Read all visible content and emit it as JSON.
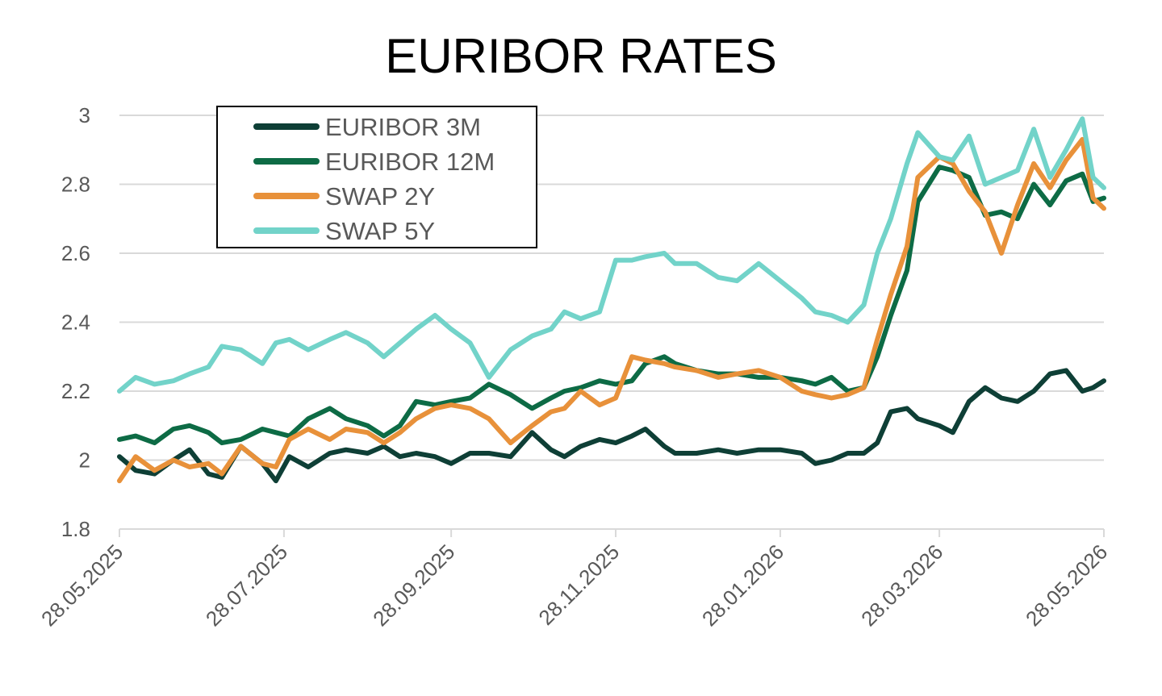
{
  "chart_data": {
    "type": "line",
    "title": "EURIBOR RATES",
    "xlabel": "",
    "ylabel": "",
    "ylim": [
      1.8,
      3.0
    ],
    "yticks": [
      "1.8",
      "2",
      "2.2",
      "2.4",
      "2.6",
      "2.8",
      "3"
    ],
    "xlim": [
      "2025-05-28",
      "2026-05-28"
    ],
    "xtick_labels": [
      "28.05.2025",
      "28.07.2025",
      "28.09.2025",
      "28.11.2025",
      "28.01.2026",
      "28.03.2026",
      "28.05.2026"
    ],
    "xtick_dates": [
      "2025-05-28",
      "2025-07-28",
      "2025-09-28",
      "2025-11-28",
      "2026-01-28",
      "2026-03-28",
      "2026-05-28"
    ],
    "grid": "horizontal",
    "legend_position": "top-left",
    "series": [
      {
        "name": "EURIBOR 3M",
        "color": "#0e3f36",
        "points": [
          [
            "2025-05-28",
            2.01
          ],
          [
            "2025-06-03",
            1.97
          ],
          [
            "2025-06-10",
            1.96
          ],
          [
            "2025-06-17",
            2.0
          ],
          [
            "2025-06-23",
            2.03
          ],
          [
            "2025-06-30",
            1.96
          ],
          [
            "2025-07-05",
            1.95
          ],
          [
            "2025-07-12",
            2.04
          ],
          [
            "2025-07-20",
            1.99
          ],
          [
            "2025-07-25",
            1.94
          ],
          [
            "2025-07-30",
            2.01
          ],
          [
            "2025-08-06",
            1.98
          ],
          [
            "2025-08-14",
            2.02
          ],
          [
            "2025-08-20",
            2.03
          ],
          [
            "2025-08-28",
            2.02
          ],
          [
            "2025-09-03",
            2.04
          ],
          [
            "2025-09-09",
            2.01
          ],
          [
            "2025-09-15",
            2.02
          ],
          [
            "2025-09-22",
            2.01
          ],
          [
            "2025-09-28",
            1.99
          ],
          [
            "2025-10-05",
            2.02
          ],
          [
            "2025-10-12",
            2.02
          ],
          [
            "2025-10-20",
            2.01
          ],
          [
            "2025-10-28",
            2.08
          ],
          [
            "2025-11-04",
            2.03
          ],
          [
            "2025-11-09",
            2.01
          ],
          [
            "2025-11-15",
            2.04
          ],
          [
            "2025-11-22",
            2.06
          ],
          [
            "2025-11-28",
            2.05
          ],
          [
            "2025-12-04",
            2.07
          ],
          [
            "2025-12-09",
            2.09
          ],
          [
            "2025-12-16",
            2.04
          ],
          [
            "2025-12-20",
            2.02
          ],
          [
            "2025-12-28",
            2.02
          ],
          [
            "2026-01-05",
            2.03
          ],
          [
            "2026-01-12",
            2.02
          ],
          [
            "2026-01-20",
            2.03
          ],
          [
            "2026-01-28",
            2.03
          ],
          [
            "2026-02-05",
            2.02
          ],
          [
            "2026-02-10",
            1.99
          ],
          [
            "2026-02-16",
            2.0
          ],
          [
            "2026-02-22",
            2.02
          ],
          [
            "2026-02-28",
            2.02
          ],
          [
            "2026-03-05",
            2.05
          ],
          [
            "2026-03-10",
            2.14
          ],
          [
            "2026-03-16",
            2.15
          ],
          [
            "2026-03-20",
            2.12
          ],
          [
            "2026-03-28",
            2.1
          ],
          [
            "2026-04-02",
            2.08
          ],
          [
            "2026-04-08",
            2.17
          ],
          [
            "2026-04-14",
            2.21
          ],
          [
            "2026-04-20",
            2.18
          ],
          [
            "2026-04-26",
            2.17
          ],
          [
            "2026-05-02",
            2.2
          ],
          [
            "2026-05-08",
            2.25
          ],
          [
            "2026-05-14",
            2.26
          ],
          [
            "2026-05-20",
            2.2
          ],
          [
            "2026-05-24",
            2.21
          ],
          [
            "2026-05-28",
            2.23
          ]
        ]
      },
      {
        "name": "EURIBOR 12M",
        "color": "#0d6b45",
        "points": [
          [
            "2025-05-28",
            2.06
          ],
          [
            "2025-06-03",
            2.07
          ],
          [
            "2025-06-10",
            2.05
          ],
          [
            "2025-06-17",
            2.09
          ],
          [
            "2025-06-23",
            2.1
          ],
          [
            "2025-06-30",
            2.08
          ],
          [
            "2025-07-05",
            2.05
          ],
          [
            "2025-07-12",
            2.06
          ],
          [
            "2025-07-20",
            2.09
          ],
          [
            "2025-07-25",
            2.08
          ],
          [
            "2025-07-30",
            2.07
          ],
          [
            "2025-08-06",
            2.12
          ],
          [
            "2025-08-14",
            2.15
          ],
          [
            "2025-08-20",
            2.12
          ],
          [
            "2025-08-28",
            2.1
          ],
          [
            "2025-09-03",
            2.07
          ],
          [
            "2025-09-09",
            2.1
          ],
          [
            "2025-09-15",
            2.17
          ],
          [
            "2025-09-22",
            2.16
          ],
          [
            "2025-09-28",
            2.17
          ],
          [
            "2025-10-05",
            2.18
          ],
          [
            "2025-10-12",
            2.22
          ],
          [
            "2025-10-20",
            2.19
          ],
          [
            "2025-10-28",
            2.15
          ],
          [
            "2025-11-04",
            2.18
          ],
          [
            "2025-11-09",
            2.2
          ],
          [
            "2025-11-15",
            2.21
          ],
          [
            "2025-11-22",
            2.23
          ],
          [
            "2025-11-28",
            2.22
          ],
          [
            "2025-12-04",
            2.23
          ],
          [
            "2025-12-09",
            2.28
          ],
          [
            "2025-12-16",
            2.3
          ],
          [
            "2025-12-20",
            2.28
          ],
          [
            "2025-12-28",
            2.26
          ],
          [
            "2026-01-05",
            2.25
          ],
          [
            "2026-01-12",
            2.25
          ],
          [
            "2026-01-20",
            2.24
          ],
          [
            "2026-01-28",
            2.24
          ],
          [
            "2026-02-05",
            2.23
          ],
          [
            "2026-02-10",
            2.22
          ],
          [
            "2026-02-16",
            2.24
          ],
          [
            "2026-02-22",
            2.2
          ],
          [
            "2026-02-28",
            2.21
          ],
          [
            "2026-03-05",
            2.3
          ],
          [
            "2026-03-10",
            2.42
          ],
          [
            "2026-03-16",
            2.55
          ],
          [
            "2026-03-20",
            2.75
          ],
          [
            "2026-03-28",
            2.85
          ],
          [
            "2026-04-02",
            2.84
          ],
          [
            "2026-04-08",
            2.82
          ],
          [
            "2026-04-14",
            2.71
          ],
          [
            "2026-04-20",
            2.72
          ],
          [
            "2026-04-26",
            2.7
          ],
          [
            "2026-05-02",
            2.8
          ],
          [
            "2026-05-08",
            2.74
          ],
          [
            "2026-05-14",
            2.81
          ],
          [
            "2026-05-20",
            2.83
          ],
          [
            "2026-05-24",
            2.75
          ],
          [
            "2026-05-28",
            2.76
          ]
        ]
      },
      {
        "name": "SWAP 2Y",
        "color": "#e8913a",
        "points": [
          [
            "2025-05-28",
            1.94
          ],
          [
            "2025-06-03",
            2.01
          ],
          [
            "2025-06-10",
            1.97
          ],
          [
            "2025-06-17",
            2.0
          ],
          [
            "2025-06-23",
            1.98
          ],
          [
            "2025-06-30",
            1.99
          ],
          [
            "2025-07-05",
            1.96
          ],
          [
            "2025-07-12",
            2.04
          ],
          [
            "2025-07-20",
            1.99
          ],
          [
            "2025-07-25",
            1.98
          ],
          [
            "2025-07-30",
            2.06
          ],
          [
            "2025-08-06",
            2.09
          ],
          [
            "2025-08-14",
            2.06
          ],
          [
            "2025-08-20",
            2.09
          ],
          [
            "2025-08-28",
            2.08
          ],
          [
            "2025-09-03",
            2.05
          ],
          [
            "2025-09-09",
            2.08
          ],
          [
            "2025-09-15",
            2.12
          ],
          [
            "2025-09-22",
            2.15
          ],
          [
            "2025-09-28",
            2.16
          ],
          [
            "2025-10-05",
            2.15
          ],
          [
            "2025-10-12",
            2.12
          ],
          [
            "2025-10-20",
            2.05
          ],
          [
            "2025-10-28",
            2.1
          ],
          [
            "2025-11-04",
            2.14
          ],
          [
            "2025-11-09",
            2.15
          ],
          [
            "2025-11-15",
            2.2
          ],
          [
            "2025-11-22",
            2.16
          ],
          [
            "2025-11-28",
            2.18
          ],
          [
            "2025-12-04",
            2.3
          ],
          [
            "2025-12-09",
            2.29
          ],
          [
            "2025-12-16",
            2.28
          ],
          [
            "2025-12-20",
            2.27
          ],
          [
            "2025-12-28",
            2.26
          ],
          [
            "2026-01-05",
            2.24
          ],
          [
            "2026-01-12",
            2.25
          ],
          [
            "2026-01-20",
            2.26
          ],
          [
            "2026-01-28",
            2.24
          ],
          [
            "2026-02-05",
            2.2
          ],
          [
            "2026-02-10",
            2.19
          ],
          [
            "2026-02-16",
            2.18
          ],
          [
            "2026-02-22",
            2.19
          ],
          [
            "2026-02-28",
            2.21
          ],
          [
            "2026-03-05",
            2.35
          ],
          [
            "2026-03-10",
            2.48
          ],
          [
            "2026-03-16",
            2.62
          ],
          [
            "2026-03-20",
            2.82
          ],
          [
            "2026-03-28",
            2.88
          ],
          [
            "2026-04-02",
            2.86
          ],
          [
            "2026-04-08",
            2.78
          ],
          [
            "2026-04-14",
            2.72
          ],
          [
            "2026-04-20",
            2.6
          ],
          [
            "2026-04-26",
            2.74
          ],
          [
            "2026-05-02",
            2.86
          ],
          [
            "2026-05-08",
            2.79
          ],
          [
            "2026-05-14",
            2.87
          ],
          [
            "2026-05-20",
            2.93
          ],
          [
            "2026-05-24",
            2.76
          ],
          [
            "2026-05-28",
            2.73
          ]
        ]
      },
      {
        "name": "SWAP 5Y",
        "color": "#72d3c9",
        "points": [
          [
            "2025-05-28",
            2.2
          ],
          [
            "2025-06-03",
            2.24
          ],
          [
            "2025-06-10",
            2.22
          ],
          [
            "2025-06-17",
            2.23
          ],
          [
            "2025-06-23",
            2.25
          ],
          [
            "2025-06-30",
            2.27
          ],
          [
            "2025-07-05",
            2.33
          ],
          [
            "2025-07-12",
            2.32
          ],
          [
            "2025-07-20",
            2.28
          ],
          [
            "2025-07-25",
            2.34
          ],
          [
            "2025-07-30",
            2.35
          ],
          [
            "2025-08-06",
            2.32
          ],
          [
            "2025-08-14",
            2.35
          ],
          [
            "2025-08-20",
            2.37
          ],
          [
            "2025-08-28",
            2.34
          ],
          [
            "2025-09-03",
            2.3
          ],
          [
            "2025-09-09",
            2.34
          ],
          [
            "2025-09-15",
            2.38
          ],
          [
            "2025-09-22",
            2.42
          ],
          [
            "2025-09-28",
            2.38
          ],
          [
            "2025-10-05",
            2.34
          ],
          [
            "2025-10-12",
            2.24
          ],
          [
            "2025-10-20",
            2.32
          ],
          [
            "2025-10-28",
            2.36
          ],
          [
            "2025-11-04",
            2.38
          ],
          [
            "2025-11-09",
            2.43
          ],
          [
            "2025-11-15",
            2.41
          ],
          [
            "2025-11-22",
            2.43
          ],
          [
            "2025-11-28",
            2.58
          ],
          [
            "2025-12-04",
            2.58
          ],
          [
            "2025-12-09",
            2.59
          ],
          [
            "2025-12-16",
            2.6
          ],
          [
            "2025-12-20",
            2.57
          ],
          [
            "2025-12-28",
            2.57
          ],
          [
            "2026-01-05",
            2.53
          ],
          [
            "2026-01-12",
            2.52
          ],
          [
            "2026-01-20",
            2.57
          ],
          [
            "2026-01-28",
            2.52
          ],
          [
            "2026-02-05",
            2.47
          ],
          [
            "2026-02-10",
            2.43
          ],
          [
            "2026-02-16",
            2.42
          ],
          [
            "2026-02-22",
            2.4
          ],
          [
            "2026-02-28",
            2.45
          ],
          [
            "2026-03-05",
            2.6
          ],
          [
            "2026-03-10",
            2.7
          ],
          [
            "2026-03-16",
            2.86
          ],
          [
            "2026-03-20",
            2.95
          ],
          [
            "2026-03-28",
            2.88
          ],
          [
            "2026-04-02",
            2.87
          ],
          [
            "2026-04-08",
            2.94
          ],
          [
            "2026-04-14",
            2.8
          ],
          [
            "2026-04-20",
            2.82
          ],
          [
            "2026-04-26",
            2.84
          ],
          [
            "2026-05-02",
            2.96
          ],
          [
            "2026-05-08",
            2.82
          ],
          [
            "2026-05-14",
            2.9
          ],
          [
            "2026-05-20",
            2.99
          ],
          [
            "2026-05-24",
            2.82
          ],
          [
            "2026-05-28",
            2.79
          ]
        ]
      }
    ]
  }
}
